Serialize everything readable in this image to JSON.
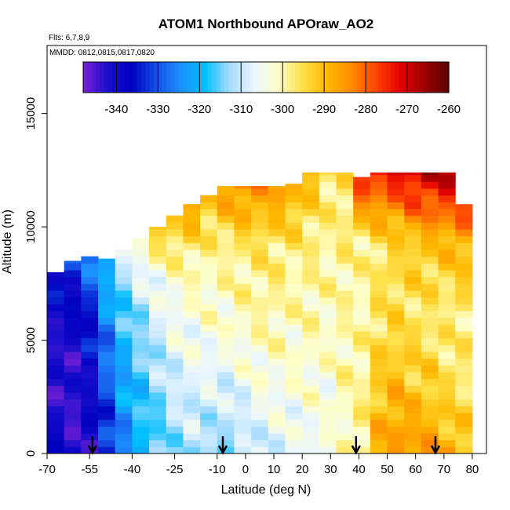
{
  "chart_data": {
    "type": "heatmap",
    "title": "ATOM1 Northbound APOraw_AO2",
    "notes": [
      "Flts: 6,7,8,9",
      "MMDD: 0812,0815,0817,0820"
    ],
    "xlabel": "Latitude (deg N)",
    "ylabel": "Altitude (m)",
    "xlim": [
      -70,
      85
    ],
    "ylim": [
      0,
      18000
    ],
    "x_ticks": [
      -70,
      -55,
      -40,
      -25,
      -10,
      0,
      10,
      20,
      30,
      40,
      50,
      60,
      70,
      80
    ],
    "x_tick_labels": [
      "-70",
      "-55",
      "-40",
      "-25",
      "-10",
      "0",
      "10",
      "20",
      "30",
      "40",
      "50",
      "60",
      "70",
      "80"
    ],
    "y_ticks": [
      0,
      5000,
      10000,
      15000
    ],
    "y_tick_labels": [
      "0",
      "5000",
      "10000",
      "15000"
    ],
    "colorbar": {
      "range": [
        -348,
        -260
      ],
      "ticks": [
        -340,
        -330,
        -320,
        -310,
        -300,
        -290,
        -280,
        -270,
        -260
      ],
      "tick_labels": [
        "-340",
        "-330",
        "-320",
        "-310",
        "-300",
        "-290",
        "-280",
        "-270",
        "-260"
      ],
      "colors": [
        "#7a1fd6",
        "#1a0fcc",
        "#0000c0",
        "#1450e6",
        "#1e90ff",
        "#00bfff",
        "#a6dcff",
        "#eaf6ff",
        "#ffffc8",
        "#ffe04a",
        "#ffb800",
        "#ff8c00",
        "#ff4500",
        "#e60000",
        "#9e0000",
        "#5a0000"
      ],
      "placement": "top"
    },
    "profile_markers_lat": [
      -54,
      -8,
      39,
      67
    ],
    "lat_bands": [
      {
        "lat": [
          -70,
          -64
        ],
        "top": 8000,
        "values": [
          -338,
          -342,
          -343,
          -340,
          -336
        ]
      },
      {
        "lat": [
          -64,
          -58
        ],
        "top": 8500,
        "values": [
          -342,
          -344,
          -342,
          -338,
          -333
        ]
      },
      {
        "lat": [
          -58,
          -52
        ],
        "top": 8700,
        "values": [
          -341,
          -340,
          -337,
          -333,
          -326
        ]
      },
      {
        "lat": [
          -52,
          -46
        ],
        "top": 8600,
        "values": [
          -334,
          -331,
          -328,
          -324,
          -318
        ]
      },
      {
        "lat": [
          -46,
          -40
        ],
        "top": 9000,
        "values": [
          -326,
          -323,
          -320,
          -316,
          -308
        ]
      },
      {
        "lat": [
          -40,
          -34
        ],
        "top": 9500,
        "values": [
          -320,
          -318,
          -315,
          -310,
          -300
        ]
      },
      {
        "lat": [
          -34,
          -28
        ],
        "top": 10000,
        "values": [
          -317,
          -314,
          -310,
          -305,
          -293
        ]
      },
      {
        "lat": [
          -28,
          -22
        ],
        "top": 10500,
        "values": [
          -313,
          -310,
          -306,
          -302,
          -290
        ]
      },
      {
        "lat": [
          -22,
          -16
        ],
        "top": 11000,
        "values": [
          -312,
          -308,
          -304,
          -300,
          -287
        ]
      },
      {
        "lat": [
          -16,
          -10
        ],
        "top": 11400,
        "values": [
          -313,
          -308,
          -303,
          -300,
          -290
        ]
      },
      {
        "lat": [
          -10,
          -4
        ],
        "top": 11800,
        "values": [
          -314,
          -308,
          -302,
          -299,
          -286
        ]
      },
      {
        "lat": [
          -4,
          2
        ],
        "top": 11800,
        "values": [
          -312,
          -306,
          -301,
          -298,
          -283
        ]
      },
      {
        "lat": [
          2,
          8
        ],
        "top": 11800,
        "values": [
          -310,
          -304,
          -300,
          -297,
          -285
        ]
      },
      {
        "lat": [
          8,
          14
        ],
        "top": 11800,
        "values": [
          -308,
          -304,
          -300,
          -297,
          -286
        ]
      },
      {
        "lat": [
          14,
          20
        ],
        "top": 11900,
        "values": [
          -307,
          -303,
          -301,
          -298,
          -287
        ]
      },
      {
        "lat": [
          20,
          26
        ],
        "top": 12400,
        "values": [
          -305,
          -303,
          -300,
          -298,
          -290
        ]
      },
      {
        "lat": [
          26,
          32
        ],
        "top": 12400,
        "values": [
          -304,
          -303,
          -301,
          -299,
          -296
        ]
      },
      {
        "lat": [
          32,
          38
        ],
        "top": 12400,
        "values": [
          -302,
          -300,
          -300,
          -298,
          -296
        ]
      },
      {
        "lat": [
          38,
          44
        ],
        "top": 12200,
        "values": [
          -298,
          -299,
          -300,
          -299,
          -275
        ]
      },
      {
        "lat": [
          44,
          50
        ],
        "top": 12400,
        "values": [
          -288,
          -292,
          -296,
          -296,
          -274
        ]
      },
      {
        "lat": [
          50,
          56
        ],
        "top": 12400,
        "values": [
          -285,
          -290,
          -295,
          -294,
          -272
        ]
      },
      {
        "lat": [
          56,
          62
        ],
        "top": 12400,
        "values": [
          -285,
          -292,
          -296,
          -292,
          -270
        ]
      },
      {
        "lat": [
          62,
          68
        ],
        "top": 12400,
        "values": [
          -286,
          -293,
          -297,
          -291,
          -268
        ]
      },
      {
        "lat": [
          68,
          74
        ],
        "top": 12400,
        "values": [
          -288,
          -295,
          -298,
          -290,
          -268
        ]
      },
      {
        "lat": [
          74,
          80
        ],
        "top": 11000,
        "values": [
          -290,
          -296,
          -298,
          -292,
          -278
        ]
      }
    ]
  }
}
